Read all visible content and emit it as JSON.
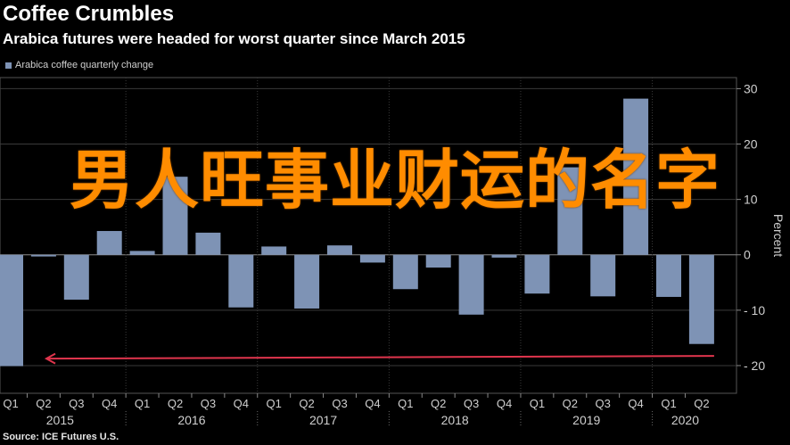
{
  "header": {
    "title": "Coffee Crumbles",
    "subtitle": "Arabica futures were headed for worst quarter since March 2015"
  },
  "legend": {
    "label": "Arabica coffee quarterly change"
  },
  "source": "Source: ICE Futures U.S.",
  "overlay_text": "男人旺事业财运的名字",
  "colors": {
    "bar": "#7e93b5",
    "arrow": "#e0354d",
    "grid": "#3a3a3a",
    "zero": "#8c8c8c"
  },
  "chart_data": {
    "type": "bar",
    "title": "Coffee Crumbles",
    "subtitle": "Arabica futures were headed for worst quarter since March 2015",
    "ylabel": "Percent",
    "ylim": [
      -25,
      32
    ],
    "yticks": [
      30,
      20,
      10,
      0,
      -10,
      -20
    ],
    "ytick_labels": [
      "30",
      "20",
      "10",
      "0",
      "- 10",
      "- 20"
    ],
    "grid": true,
    "legend_position": "top-left",
    "categories": [
      "Q1",
      "Q2",
      "Q3",
      "Q4",
      "Q1",
      "Q2",
      "Q3",
      "Q4",
      "Q1",
      "Q2",
      "Q3",
      "Q4",
      "Q1",
      "Q2",
      "Q3",
      "Q4",
      "Q1",
      "Q2",
      "Q3",
      "Q4",
      "Q1",
      "Q2"
    ],
    "years": [
      {
        "label": "2015",
        "start": 0,
        "end": 3
      },
      {
        "label": "2016",
        "start": 4,
        "end": 7
      },
      {
        "label": "2017",
        "start": 8,
        "end": 11
      },
      {
        "label": "2018",
        "start": 12,
        "end": 15
      },
      {
        "label": "2019",
        "start": 16,
        "end": 19
      },
      {
        "label": "2020",
        "start": 20,
        "end": 21
      }
    ],
    "series": [
      {
        "name": "Arabica coffee quarterly change",
        "values": [
          -20.1,
          -0.3,
          -8.1,
          4.3,
          0.7,
          14.1,
          4.0,
          -9.5,
          1.5,
          -9.7,
          1.7,
          -1.4,
          -6.2,
          -2.3,
          -10.8,
          -0.5,
          -7.0,
          15.8,
          -7.5,
          28.2,
          -7.6,
          -16.1
        ]
      }
    ],
    "annotation": {
      "type": "arrow",
      "from_index": 21,
      "to_index": 0,
      "value": -18.5
    }
  }
}
